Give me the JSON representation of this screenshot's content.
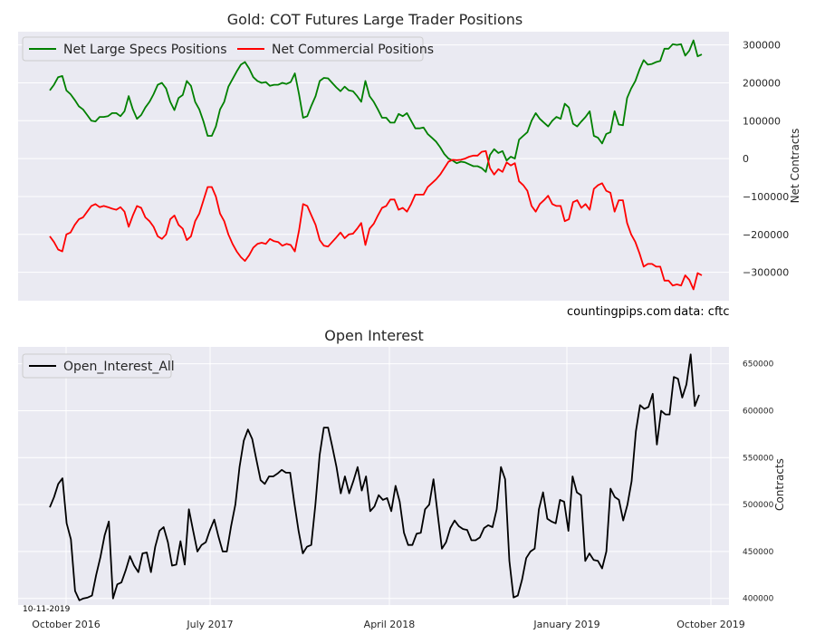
{
  "chart_data": [
    {
      "type": "line",
      "title": "Gold: COT Futures Large Trader Positions",
      "ylabel": "Net Contracts",
      "ylim": [
        -375000,
        335000
      ],
      "grid": true,
      "legend_placement": "upper-left",
      "y_ticks": [
        300000,
        200000,
        100000,
        0,
        -100000,
        -200000,
        -300000
      ],
      "y_tick_labels": [
        "300000",
        "200000",
        "100000",
        "0",
        "−100000",
        "−200000",
        "−300000"
      ],
      "annotations": [
        "countingpips.com",
        "data: cftc"
      ],
      "series": [
        {
          "name": "Net Large Specs Positions",
          "color": "#008000",
          "values": [
            180000,
            195000,
            215000,
            218000,
            180000,
            170000,
            155000,
            138000,
            130000,
            115000,
            100000,
            98000,
            110000,
            110000,
            112000,
            120000,
            120000,
            112000,
            125000,
            165000,
            130000,
            105000,
            115000,
            135000,
            150000,
            170000,
            195000,
            200000,
            185000,
            150000,
            128000,
            160000,
            168000,
            205000,
            192000,
            150000,
            130000,
            98000,
            60000,
            60000,
            85000,
            130000,
            150000,
            190000,
            210000,
            230000,
            248000,
            255000,
            238000,
            215000,
            205000,
            200000,
            202000,
            192000,
            195000,
            195000,
            200000,
            197000,
            202000,
            225000,
            170000,
            108000,
            112000,
            140000,
            165000,
            205000,
            213000,
            212000,
            200000,
            188000,
            178000,
            190000,
            180000,
            178000,
            165000,
            150000,
            205000,
            165000,
            150000,
            130000,
            108000,
            108000,
            95000,
            95000,
            118000,
            112000,
            120000,
            100000,
            80000,
            80000,
            82000,
            65000,
            55000,
            45000,
            30000,
            12000,
            0,
            -5000,
            -12000,
            -8000,
            -10000,
            -15000,
            -20000,
            -20000,
            -25000,
            -35000,
            10000,
            25000,
            15000,
            20000,
            -5000,
            5000,
            0,
            50000,
            60000,
            70000,
            100000,
            120000,
            105000,
            95000,
            85000,
            100000,
            110000,
            105000,
            145000,
            135000,
            92000,
            85000,
            98000,
            110000,
            125000,
            60000,
            55000,
            40000,
            65000,
            70000,
            125000,
            90000,
            88000,
            160000,
            185000,
            205000,
            235000,
            260000,
            248000,
            250000,
            255000,
            258000,
            290000,
            290000,
            302000,
            300000,
            302000,
            272000,
            285000,
            312000,
            270000,
            275000
          ]
        },
        {
          "name": "Net Commercial Positions",
          "color": "#ff0000",
          "values": [
            -205000,
            -220000,
            -240000,
            -245000,
            -200000,
            -195000,
            -175000,
            -160000,
            -155000,
            -140000,
            -125000,
            -120000,
            -128000,
            -125000,
            -128000,
            -132000,
            -135000,
            -128000,
            -140000,
            -180000,
            -150000,
            -125000,
            -130000,
            -155000,
            -165000,
            -180000,
            -205000,
            -212000,
            -200000,
            -160000,
            -150000,
            -175000,
            -185000,
            -215000,
            -205000,
            -165000,
            -145000,
            -110000,
            -75000,
            -75000,
            -100000,
            -145000,
            -165000,
            -200000,
            -225000,
            -245000,
            -260000,
            -270000,
            -255000,
            -235000,
            -225000,
            -222000,
            -225000,
            -212000,
            -218000,
            -220000,
            -230000,
            -225000,
            -228000,
            -245000,
            -190000,
            -120000,
            -125000,
            -150000,
            -175000,
            -215000,
            -230000,
            -232000,
            -220000,
            -208000,
            -195000,
            -210000,
            -200000,
            -198000,
            -185000,
            -170000,
            -228000,
            -185000,
            -172000,
            -150000,
            -130000,
            -125000,
            -108000,
            -108000,
            -135000,
            -130000,
            -140000,
            -120000,
            -95000,
            -95000,
            -95000,
            -75000,
            -65000,
            -55000,
            -42000,
            -25000,
            -8000,
            -3000,
            -4000,
            -3000,
            0,
            5000,
            8000,
            8000,
            18000,
            20000,
            -25000,
            -42000,
            -28000,
            -35000,
            -10000,
            -18000,
            -12000,
            -60000,
            -70000,
            -85000,
            -125000,
            -140000,
            -120000,
            -110000,
            -98000,
            -120000,
            -125000,
            -125000,
            -165000,
            -160000,
            -115000,
            -110000,
            -130000,
            -120000,
            -135000,
            -80000,
            -70000,
            -65000,
            -85000,
            -90000,
            -140000,
            -110000,
            -110000,
            -170000,
            -200000,
            -220000,
            -250000,
            -285000,
            -278000,
            -278000,
            -285000,
            -285000,
            -322000,
            -322000,
            -335000,
            -332000,
            -335000,
            -308000,
            -320000,
            -345000,
            -302000,
            -308000
          ]
        }
      ]
    },
    {
      "type": "line",
      "title": "Open Interest",
      "ylabel": "Contracts",
      "ylim": [
        393000,
        668000
      ],
      "grid": true,
      "legend_placement": "upper-left",
      "y_ticks": [
        400000,
        450000,
        500000,
        550000,
        600000,
        650000
      ],
      "y_tick_labels": [
        "400000",
        "450000",
        "500000",
        "550000",
        "600000",
        "650000"
      ],
      "x_tick_labels": [
        "October 2016",
        "July 2017",
        "April 2018",
        "January 2019",
        "October 2019"
      ],
      "annotations": [
        "10-11-2019"
      ],
      "series": [
        {
          "name": "Open_Interest_All",
          "color": "#000000",
          "values": [
            497000,
            508000,
            522000,
            528000,
            480000,
            463000,
            408000,
            398000,
            400000,
            401000,
            403000,
            425000,
            444000,
            467000,
            482000,
            400000,
            415000,
            417000,
            430000,
            445000,
            435000,
            428000,
            448000,
            449000,
            428000,
            455000,
            472000,
            476000,
            460000,
            435000,
            436000,
            461000,
            436000,
            495000,
            472000,
            450000,
            457000,
            460000,
            473000,
            484000,
            466000,
            450000,
            450000,
            477000,
            500000,
            540000,
            568000,
            580000,
            570000,
            548000,
            526000,
            522000,
            530000,
            530000,
            533000,
            537000,
            534000,
            534000,
            502000,
            472000,
            448000,
            455000,
            457000,
            500000,
            553000,
            582000,
            582000,
            562000,
            540000,
            512000,
            530000,
            512000,
            525000,
            540000,
            515000,
            530000,
            493000,
            498000,
            510000,
            505000,
            507000,
            493000,
            520000,
            503000,
            470000,
            457000,
            457000,
            469000,
            470000,
            495000,
            500000,
            527000,
            490000,
            453000,
            460000,
            475000,
            483000,
            477000,
            474000,
            473000,
            462000,
            462000,
            465000,
            475000,
            478000,
            476000,
            495000,
            540000,
            527000,
            440000,
            401000,
            403000,
            420000,
            443000,
            450000,
            453000,
            495000,
            513000,
            485000,
            482000,
            480000,
            505000,
            503000,
            472000,
            530000,
            513000,
            510000,
            440000,
            448000,
            441000,
            440000,
            432000,
            450000,
            517000,
            508000,
            505000,
            483000,
            500000,
            525000,
            578000,
            606000,
            602000,
            604000,
            618000,
            564000,
            600000,
            596000,
            596000,
            636000,
            634000,
            614000,
            628000,
            660000,
            605000,
            617000
          ]
        }
      ]
    }
  ]
}
